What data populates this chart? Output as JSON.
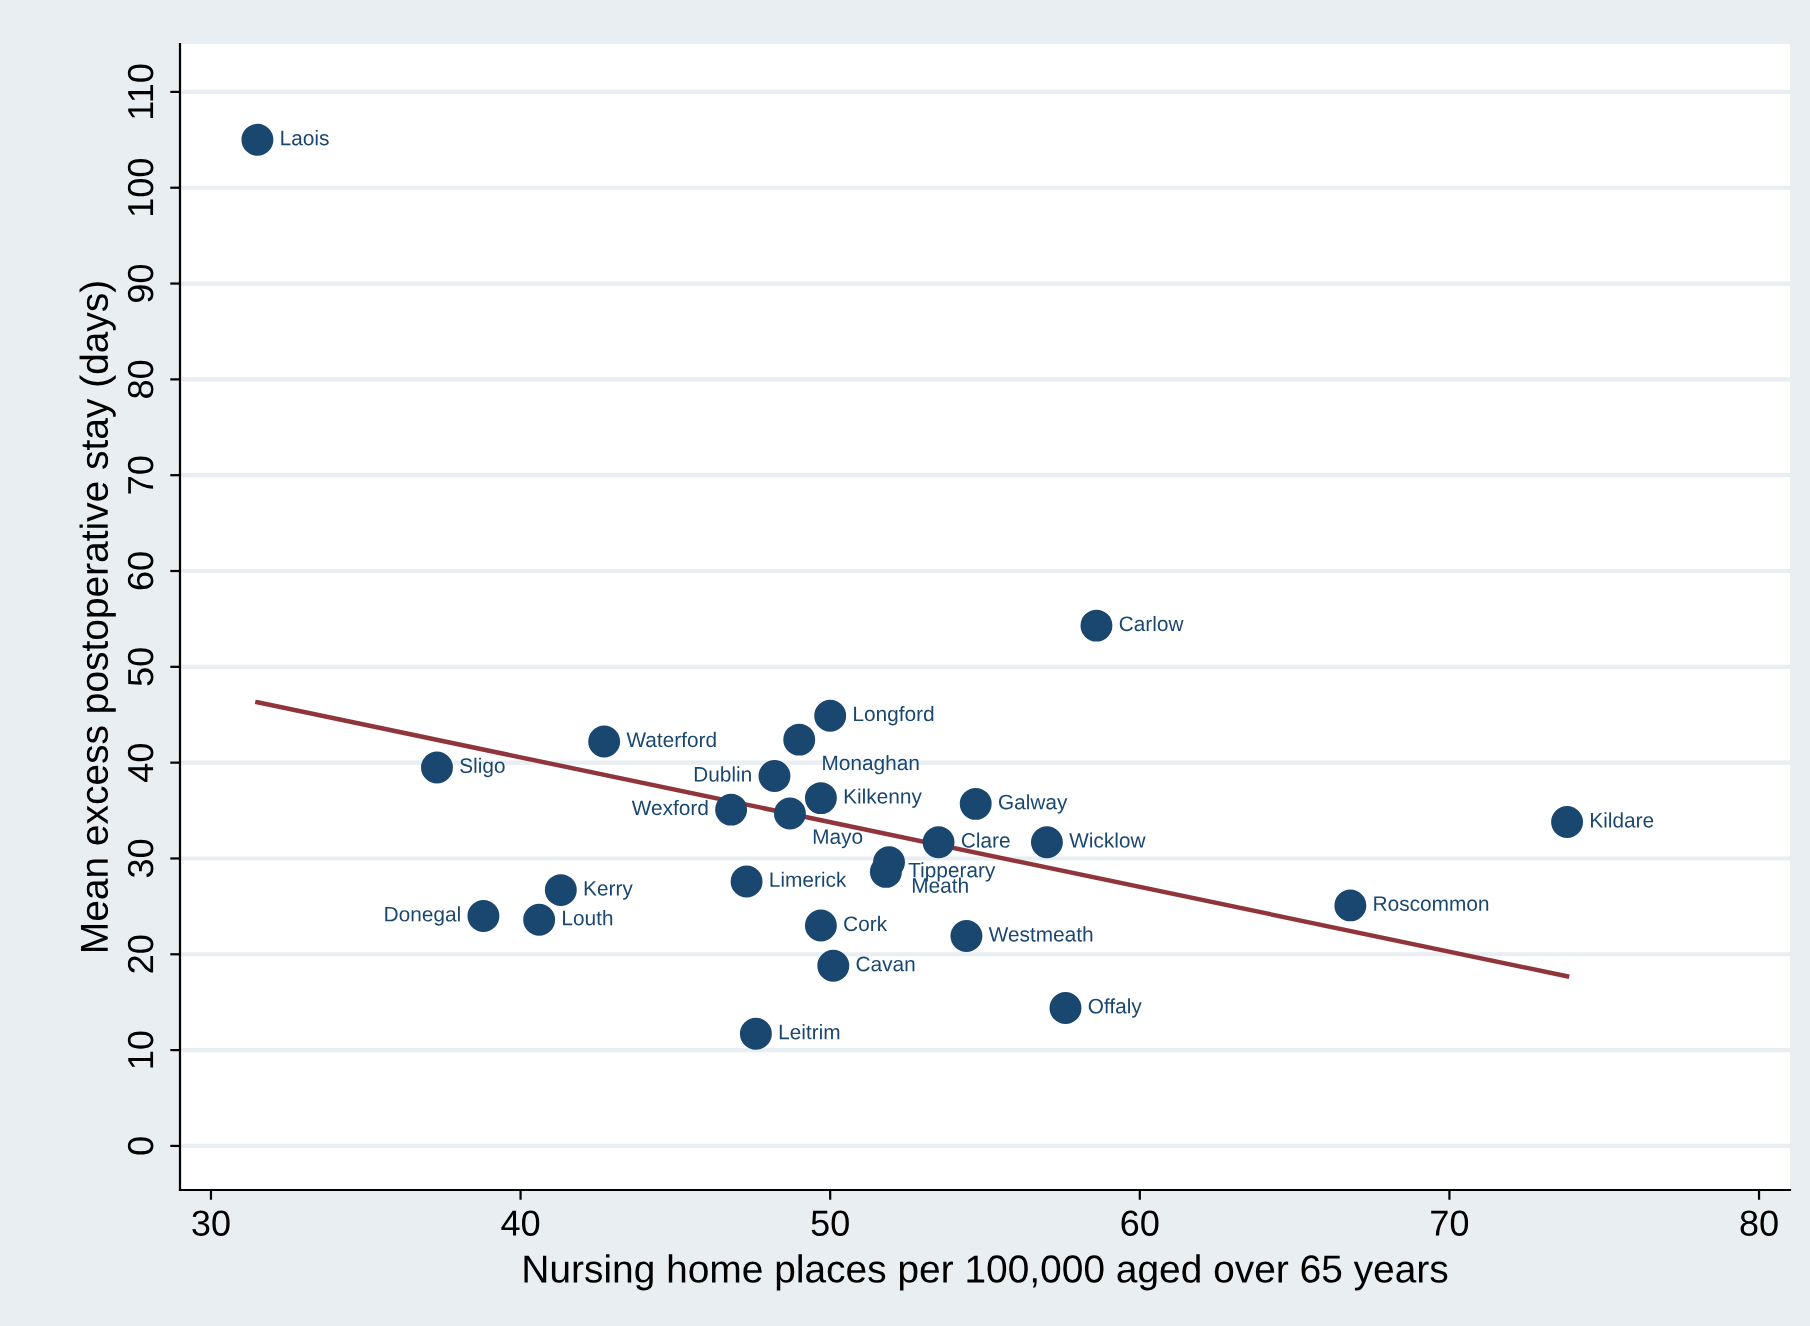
{
  "chart_data": {
    "type": "scatter",
    "xlabel": "Nursing home places per 100,000 aged over 65 years",
    "ylabel": "Mean excess postoperative stay (days)",
    "xlim": [
      29,
      81
    ],
    "ylim": [
      -4.6,
      115
    ],
    "xticks": [
      30,
      40,
      50,
      60,
      70,
      80
    ],
    "yticks": [
      0,
      10,
      20,
      30,
      40,
      50,
      60,
      70,
      80,
      90,
      100,
      110
    ],
    "grid": "y",
    "marker": "circle",
    "series": [
      {
        "color": "#1a476f",
        "x": [
          31.5,
          37.3,
          42.7,
          38.8,
          40.6,
          41.3,
          46.8,
          48.7,
          48.2,
          49.0,
          50.0,
          49.7,
          47.3,
          49.7,
          50.1,
          47.6,
          51.9,
          51.8,
          53.5,
          54.7,
          57.0,
          54.4,
          57.6,
          58.6,
          73.8,
          66.8
        ],
        "values": [
          105.0,
          39.5,
          42.2,
          24.0,
          23.6,
          26.7,
          35.1,
          34.7,
          38.6,
          42.4,
          44.9,
          36.3,
          27.6,
          23.0,
          18.8,
          11.7,
          29.6,
          28.6,
          31.7,
          35.7,
          31.7,
          21.9,
          14.4,
          54.3,
          33.8,
          25.1
        ]
      },
      {
        "type": "line",
        "color": "#90353b",
        "marker": "none",
        "line_style": "solid",
        "x": [
          31.5,
          73.8
        ],
        "values": [
          46.3,
          17.7
        ]
      }
    ],
    "annotations": [
      {
        "text": "Laois",
        "x": 31.5,
        "y": 105.0
      },
      {
        "text": "Sligo",
        "x": 37.3,
        "y": 39.5
      },
      {
        "text": "Waterford",
        "x": 42.7,
        "y": 42.2
      },
      {
        "text": "Donegal",
        "x": 38.8,
        "y": 24.0
      },
      {
        "text": "Louth",
        "x": 40.6,
        "y": 23.6
      },
      {
        "text": "Kerry",
        "x": 41.3,
        "y": 26.7
      },
      {
        "text": "Wexford",
        "x": 46.8,
        "y": 35.1
      },
      {
        "text": "Mayo",
        "x": 48.7,
        "y": 34.7
      },
      {
        "text": "Dublin",
        "x": 48.2,
        "y": 38.6
      },
      {
        "text": "Monaghan",
        "x": 49.0,
        "y": 42.4
      },
      {
        "text": "Longford",
        "x": 50.0,
        "y": 44.9
      },
      {
        "text": "Kilkenny",
        "x": 49.7,
        "y": 36.3
      },
      {
        "text": "Limerick",
        "x": 47.3,
        "y": 27.6
      },
      {
        "text": "Cork",
        "x": 49.7,
        "y": 23.0
      },
      {
        "text": "Cavan",
        "x": 50.1,
        "y": 18.8
      },
      {
        "text": "Leitrim",
        "x": 47.6,
        "y": 11.7
      },
      {
        "text": "Meath",
        "x": 51.9,
        "y": 29.6
      },
      {
        "text": "Tipperary",
        "x": 51.8,
        "y": 28.6
      },
      {
        "text": "Clare",
        "x": 53.5,
        "y": 31.7
      },
      {
        "text": "Galway",
        "x": 54.7,
        "y": 35.7
      },
      {
        "text": "Wicklow",
        "x": 57.0,
        "y": 31.7
      },
      {
        "text": "Westmeath",
        "x": 54.4,
        "y": 21.9
      },
      {
        "text": "Offaly",
        "x": 57.6,
        "y": 14.4
      },
      {
        "text": "Carlow",
        "x": 58.6,
        "y": 54.3
      },
      {
        "text": "Kildare",
        "x": 73.8,
        "y": 33.8
      },
      {
        "text": "Roscommon",
        "x": 66.8,
        "y": 25.1
      }
    ]
  }
}
